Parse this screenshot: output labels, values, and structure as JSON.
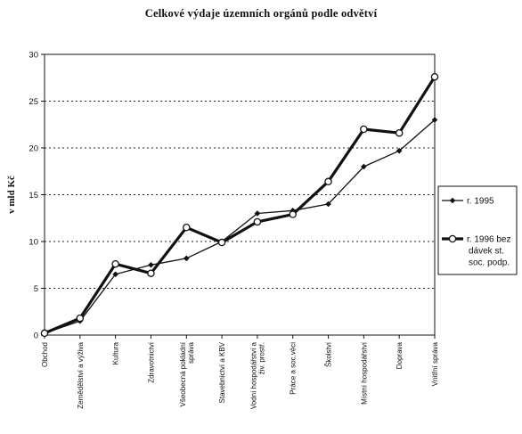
{
  "chart_data": {
    "type": "line",
    "title": "Celkové výdaje územních orgánů podle odvětví",
    "ylabel": "v mld Kč",
    "xlabel": "",
    "ylim": [
      0,
      30
    ],
    "yticks": [
      0,
      5,
      10,
      15,
      20,
      25,
      30
    ],
    "grid": "horizontal dotted",
    "legend_position": "right",
    "categories": [
      "Obchod",
      "Zemědělství a výživa",
      "Kultura",
      "Zdravotnictví",
      "Všeobecná pokladní správa",
      "Stavebnictví a KBV",
      "Vodní hospodářství a živ. prostř.",
      "Práce a soc.věci",
      "Školství",
      "Místní hospodářství",
      "Doprava",
      "Vnitřní správa"
    ],
    "category_lines": [
      [
        "Obchod"
      ],
      [
        "Zemědělství a výživa"
      ],
      [
        "Kultura"
      ],
      [
        "Zdravotnictví"
      ],
      [
        "Všeobecná pokladní",
        "správa"
      ],
      [
        "Stavebnictví a KBV"
      ],
      [
        "Vodní hospodářství a",
        "živ. prostř."
      ],
      [
        "Práce a soc.věci"
      ],
      [
        "Školství"
      ],
      [
        "Místní hospodářství"
      ],
      [
        "Doprava"
      ],
      [
        "Vnitřní správa"
      ]
    ],
    "series": [
      {
        "name": "r. 1995",
        "legend_lines": [
          "r. 1995"
        ],
        "marker": "filled-diamond",
        "color": "#111111",
        "values": [
          0.2,
          1.5,
          6.5,
          7.5,
          8.2,
          10.0,
          13.0,
          13.3,
          14.0,
          18.0,
          19.7,
          23.0
        ]
      },
      {
        "name": "r. 1996 bez dávek st. soc. podp.",
        "legend_lines": [
          "r. 1996 bez",
          "dávek st.",
          "soc. podp."
        ],
        "marker": "open-circle",
        "color": "#111111",
        "values": [
          0.2,
          1.8,
          7.6,
          6.6,
          11.5,
          9.9,
          12.1,
          12.9,
          16.4,
          22.0,
          21.6,
          27.6
        ]
      }
    ]
  }
}
